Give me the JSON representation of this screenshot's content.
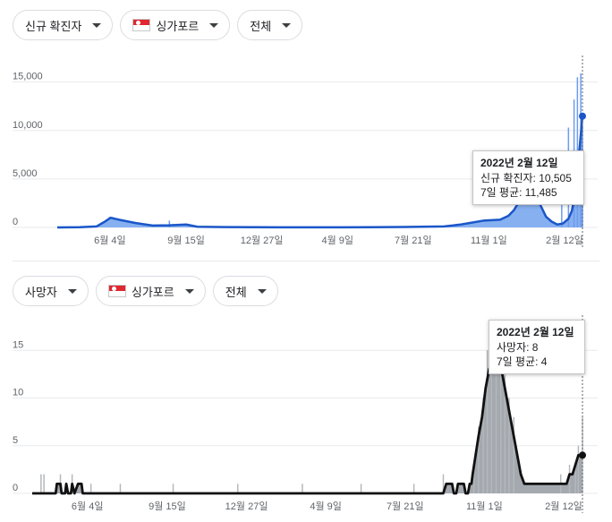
{
  "colors": {
    "cases_line": "#1a56c8",
    "cases_area": "#7aa7ee",
    "cases_bar": "#6c9cf0",
    "deaths_line": "#111111",
    "deaths_area": "#9aa0a6",
    "deaths_bar": "#b4b8bd",
    "grid": "#e8eaed",
    "axis_text": "#5f6368"
  },
  "top": {
    "metric_label": "신규 확진자",
    "country_label": "싱가포르",
    "range_label": "전체",
    "tooltip": {
      "title": "2022년 2월 12일",
      "line1": "신규 확진자: 10,505",
      "line2": "7일 평균: 11,485"
    }
  },
  "bottom": {
    "metric_label": "사망자",
    "country_label": "싱가포르",
    "range_label": "전체",
    "tooltip": {
      "title": "2022년 2월 12일",
      "line1": "사망자: 8",
      "line2": "7일 평균: 4"
    }
  },
  "chart_data": [
    {
      "type": "area",
      "title": "",
      "xlabel": "",
      "ylabel": "",
      "x_ticks": [
        "6월 4일",
        "9월 15일",
        "12월 27일",
        "4월 9일",
        "7월 21일",
        "11월 1일",
        "2월 12일"
      ],
      "y_ticks": [
        "0",
        "5,000",
        "10,000",
        "15,000"
      ],
      "ylim": [
        0,
        17000
      ],
      "grid": true,
      "series": [
        {
          "name": "7일 평균",
          "points": [
            [
              0,
              0
            ],
            [
              40,
              20
            ],
            [
              70,
              100
            ],
            [
              85,
              600
            ],
            [
              95,
              1000
            ],
            [
              110,
              800
            ],
            [
              140,
              450
            ],
            [
              170,
              200
            ],
            [
              200,
              220
            ],
            [
              230,
              300
            ],
            [
              250,
              70
            ],
            [
              300,
              40
            ],
            [
              400,
              10
            ],
            [
              500,
              10
            ],
            [
              560,
              20
            ],
            [
              620,
              50
            ],
            [
              690,
              100
            ],
            [
              720,
              300
            ],
            [
              760,
              700
            ],
            [
              790,
              800
            ],
            [
              805,
              1200
            ],
            [
              815,
              1800
            ],
            [
              825,
              2800
            ],
            [
              838,
              3600
            ],
            [
              850,
              3400
            ],
            [
              862,
              2300
            ],
            [
              872,
              1100
            ],
            [
              882,
              600
            ],
            [
              892,
              300
            ],
            [
              902,
              400
            ],
            [
              912,
              900
            ],
            [
              918,
              1700
            ],
            [
              924,
              3500
            ],
            [
              930,
              7000
            ],
            [
              937,
              11485
            ]
          ]
        }
      ],
      "daily_spikes": [
        [
          200,
          700
        ],
        [
          900,
          6000
        ],
        [
          912,
          10300
        ],
        [
          922,
          13200
        ],
        [
          928,
          15500
        ],
        [
          934,
          15900
        ],
        [
          937,
          10505
        ]
      ],
      "highlight": {
        "date": "2022년 2월 12일",
        "daily": 10505,
        "avg7": 11485
      }
    },
    {
      "type": "area",
      "title": "",
      "xlabel": "",
      "ylabel": "",
      "x_ticks": [
        "6월 4일",
        "9월 15일",
        "12월 27일",
        "4월 9일",
        "7월 21일",
        "11월 1일",
        "2월 12일"
      ],
      "y_ticks": [
        "0",
        "5",
        "10",
        "15"
      ],
      "ylim": [
        0,
        17
      ],
      "grid": true,
      "series": [
        {
          "name": "7일 평균",
          "points": [
            [
              0,
              0
            ],
            [
              40,
              0
            ],
            [
              42,
              1
            ],
            [
              48,
              1
            ],
            [
              50,
              0
            ],
            [
              56,
              0
            ],
            [
              58,
              1
            ],
            [
              61,
              0
            ],
            [
              66,
              0
            ],
            [
              68,
              1
            ],
            [
              72,
              0
            ],
            [
              78,
              1
            ],
            [
              84,
              1
            ],
            [
              86,
              0
            ],
            [
              90,
              0
            ],
            [
              700,
              0
            ],
            [
              705,
              1
            ],
            [
              715,
              1
            ],
            [
              718,
              0
            ],
            [
              722,
              0
            ],
            [
              725,
              1
            ],
            [
              735,
              1
            ],
            [
              738,
              0
            ],
            [
              742,
              0
            ],
            [
              745,
              1
            ],
            [
              748,
              1
            ],
            [
              750,
              2
            ],
            [
              755,
              4
            ],
            [
              760,
              6
            ],
            [
              766,
              8
            ],
            [
              772,
              11
            ],
            [
              778,
              13
            ],
            [
              784,
              14
            ],
            [
              790,
              15
            ],
            [
              796,
              14
            ],
            [
              802,
              12
            ],
            [
              808,
              10
            ],
            [
              814,
              8
            ],
            [
              820,
              6
            ],
            [
              826,
              4
            ],
            [
              832,
              2
            ],
            [
              838,
              1
            ],
            [
              910,
              1
            ],
            [
              915,
              2
            ],
            [
              920,
              2
            ],
            [
              925,
              3
            ],
            [
              930,
              4
            ],
            [
              937,
              4
            ]
          ]
        }
      ],
      "daily_spikes": [
        [
          15,
          2
        ],
        [
          20,
          2
        ],
        [
          48,
          2
        ],
        [
          68,
          2
        ],
        [
          100,
          1
        ],
        [
          150,
          1
        ],
        [
          240,
          1
        ],
        [
          350,
          1
        ],
        [
          460,
          1
        ],
        [
          560,
          1
        ],
        [
          650,
          1
        ],
        [
          700,
          2
        ],
        [
          752,
          3
        ],
        [
          760,
          7
        ],
        [
          768,
          10
        ],
        [
          775,
          15
        ],
        [
          782,
          17
        ],
        [
          790,
          17
        ],
        [
          798,
          16
        ],
        [
          805,
          13
        ],
        [
          812,
          10
        ],
        [
          820,
          8
        ],
        [
          900,
          2
        ],
        [
          915,
          3
        ],
        [
          925,
          3
        ],
        [
          930,
          5
        ],
        [
          937,
          8
        ]
      ],
      "highlight": {
        "date": "2022년 2월 12일",
        "daily": 8,
        "avg7": 4
      }
    }
  ]
}
